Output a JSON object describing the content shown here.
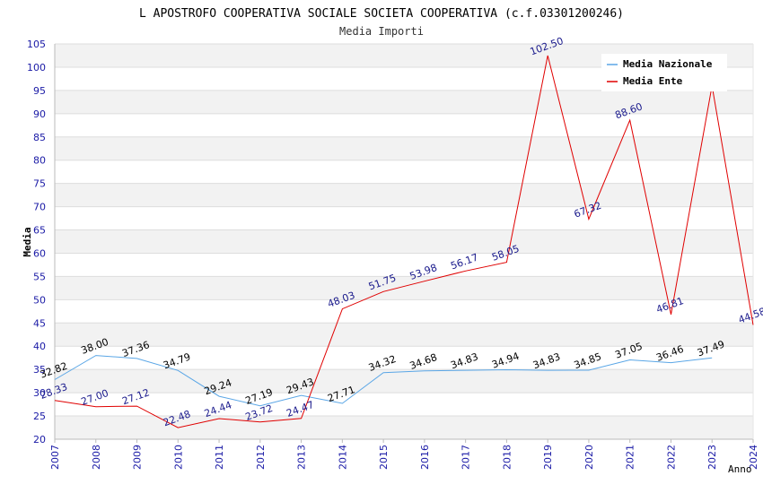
{
  "chart_data": {
    "type": "line",
    "title": "L APOSTROFO COOPERATIVA SOCIALE SOCIETA COOPERATIVA (c.f.03301200246)",
    "subtitle": "Media Importi",
    "xlabel": "Anno",
    "ylabel": "Media",
    "ylim": [
      20,
      105
    ],
    "y_ticks": [
      "20",
      "25",
      "30",
      "35",
      "40",
      "45",
      "50",
      "55",
      "60",
      "65",
      "70",
      "75",
      "80",
      "85",
      "90",
      "95",
      "100",
      "105"
    ],
    "x_ticks": [
      "2007",
      "2008",
      "2009",
      "2010",
      "2011",
      "2012",
      "2013",
      "2014",
      "2015",
      "2016",
      "2017",
      "2018",
      "2019",
      "2020",
      "2021",
      "2022",
      "2023",
      "2024"
    ],
    "grid": true,
    "legend_position": "top-right",
    "series": [
      {
        "name": "Media Nazionale",
        "color": "#5aa6e6",
        "label_color": "#000000",
        "x": [
          "2007",
          "2008",
          "2009",
          "2010",
          "2011",
          "2012",
          "2013",
          "2014",
          "2015",
          "2016",
          "2017",
          "2018",
          "2019",
          "2020",
          "2021",
          "2022",
          "2023"
        ],
        "values": [
          32.82,
          38.0,
          37.36,
          34.79,
          29.24,
          27.19,
          29.43,
          27.71,
          34.32,
          34.68,
          34.83,
          34.94,
          34.83,
          34.85,
          37.05,
          36.46,
          37.49
        ],
        "labels": [
          "32.82",
          "38.00",
          "37.36",
          "34.79",
          "29.24",
          "27.19",
          "29.43",
          "27.71",
          "34.32",
          "34.68",
          "34.83",
          "34.94",
          "34.83",
          "34.85",
          "37.05",
          "36.46",
          "37.49"
        ]
      },
      {
        "name": "Media Ente",
        "color": "#e00000",
        "label_color": "#1a1a8c",
        "x": [
          "2007",
          "2008",
          "2009",
          "2010",
          "2011",
          "2012",
          "2013",
          "2014",
          "2015",
          "2016",
          "2017",
          "2018",
          "2019",
          "2020",
          "2021",
          "2022",
          "2023",
          "2024"
        ],
        "values": [
          28.33,
          27.0,
          27.12,
          22.48,
          24.44,
          23.72,
          24.47,
          48.03,
          51.75,
          53.98,
          56.17,
          58.05,
          102.5,
          67.32,
          88.6,
          46.81,
          96.0,
          44.58
        ],
        "labels": [
          "28.33",
          "27.00",
          "27.12",
          "22.48",
          "24.44",
          "23.72",
          "24.47",
          "48.03",
          "51.75",
          "53.98",
          "56.17",
          "58.05",
          "102.50",
          "67.32",
          "88.60",
          "46.81",
          "",
          "44.58"
        ]
      }
    ]
  }
}
